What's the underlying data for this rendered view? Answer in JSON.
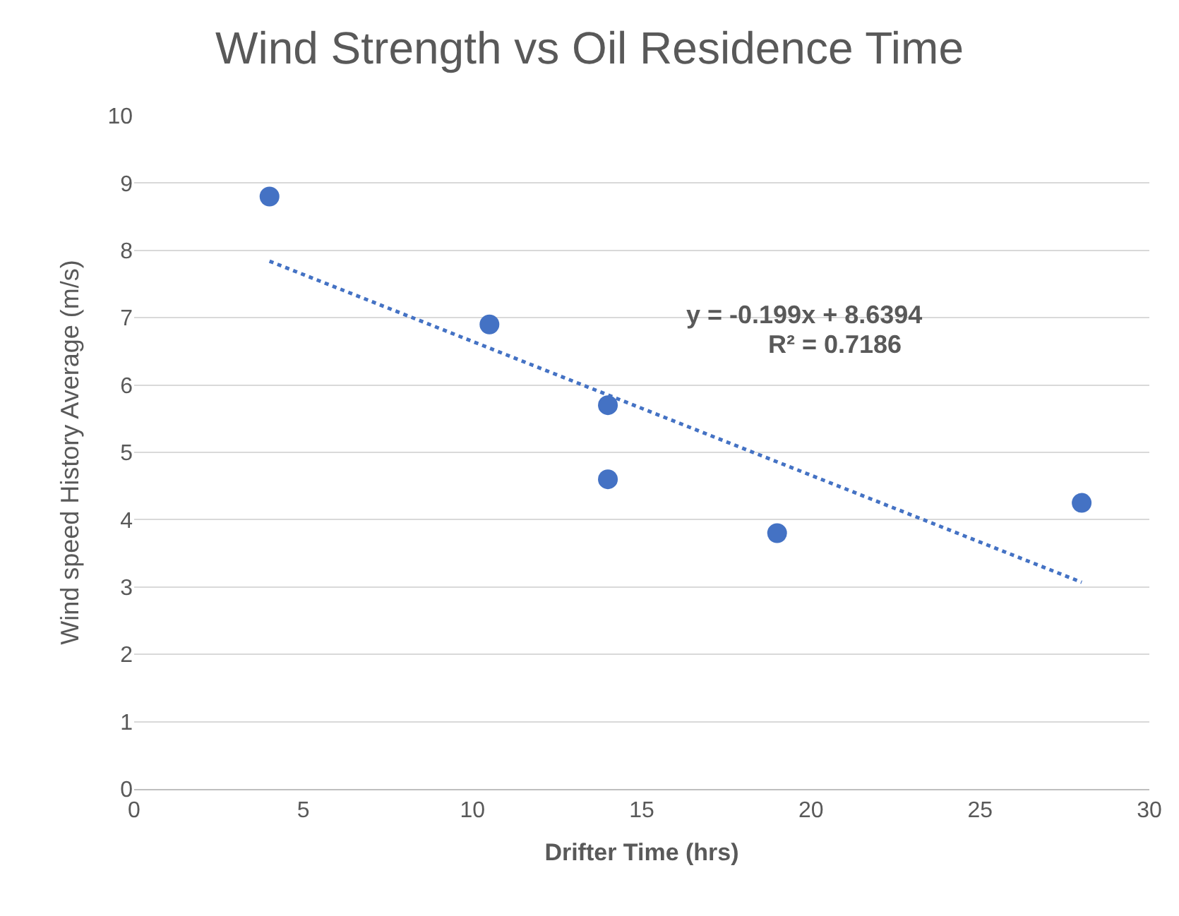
{
  "chart_data": {
    "type": "scatter",
    "title": "Wind Strength vs Oil Residence Time",
    "xlabel": "Drifter Time (hrs)",
    "ylabel": "Wind speed History Average (m/s)",
    "x": [
      4,
      10.5,
      14,
      14,
      19,
      28
    ],
    "series": [
      {
        "color": "#4472c4",
        "values": [
          8.8,
          6.9,
          5.7,
          4.6,
          3.8,
          4.25
        ],
        "marker": "circle"
      },
      {
        "type": "line",
        "color": "#4472c4",
        "x": [
          4,
          28
        ],
        "values": [
          7.84,
          3.07
        ],
        "line_style": "dotted",
        "marker": "none"
      }
    ],
    "annotations": [
      "y = -0.199x + 8.6394",
      "R² = 0.7186"
    ],
    "xlim": [
      0,
      30
    ],
    "xticks": [
      0,
      5,
      10,
      15,
      20,
      25,
      30
    ],
    "ylim": [
      0,
      10
    ],
    "yticks": [
      0,
      1,
      2,
      3,
      4,
      5,
      6,
      7,
      8,
      9,
      10
    ],
    "grid": "y"
  }
}
